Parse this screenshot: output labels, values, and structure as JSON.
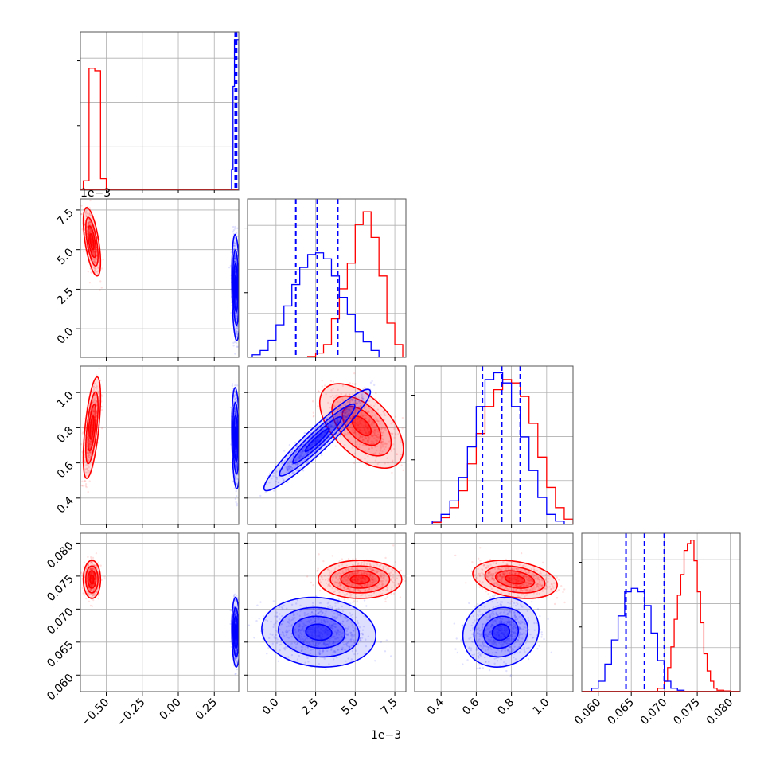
{
  "chart_data": {
    "type": "corner",
    "grid": true,
    "series": [
      {
        "color": "#ff0000"
      },
      {
        "color": "#0000ff",
        "quantile_lines": true
      }
    ],
    "params": [
      {
        "range": [
          -0.68,
          0.42
        ],
        "ticks": [
          -0.5,
          -0.25,
          0.0,
          0.25
        ],
        "tick_labels": [
          "−0.50",
          "−0.25",
          "0.00",
          "0.25"
        ],
        "hist": {
          "red": {
            "bins": [
              -0.66,
              -0.64,
              -0.62,
              -0.6,
              -0.58,
              -0.56,
              -0.54,
              -0.52,
              -0.5,
              -0.48,
              -0.46
            ],
            "counts": [
              0.18,
              0.18,
              2.35,
              2.35,
              2.3,
              2.3,
              0.22,
              0.22,
              0.0,
              0.0
            ]
          },
          "blue": {
            "bins": [
              0.37,
              0.38,
              0.39,
              0.4,
              0.41,
              0.42
            ],
            "counts": [
              0.4,
              2.0,
              2.9,
              2.9,
              2.9
            ]
          },
          "ylim": [
            0,
            3.05
          ],
          "blue_quantiles": [
            0.395,
            0.4,
            0.405
          ]
        }
      },
      {
        "range": [
          -0.0018,
          0.0082
        ],
        "ticks": [
          0.0,
          0.0025,
          0.005,
          0.0075
        ],
        "tick_labels": [
          "0.0",
          "2.5",
          "5.0",
          "7.5"
        ],
        "offset": "1e−3",
        "hist": {
          "red": {
            "bins": [
              0.002,
              0.0025,
              0.003,
              0.0035,
              0.004,
              0.0045,
              0.005,
              0.0055,
              0.006,
              0.0065,
              0.007,
              0.0075,
              0.008
            ],
            "counts": [
              0.1,
              0.5,
              1.5,
              4.5,
              8.0,
              11.0,
              15.5,
              17.0,
              14.0,
              9.5,
              4.0,
              1.5
            ]
          },
          "blue": {
            "bins": [
              -0.0015,
              -0.001,
              -0.0005,
              0.0,
              0.0005,
              0.001,
              0.0015,
              0.002,
              0.0025,
              0.003,
              0.0035,
              0.004,
              0.0045,
              0.005,
              0.0055,
              0.006,
              0.0065
            ],
            "counts": [
              0.3,
              0.8,
              2.0,
              3.8,
              6.0,
              8.5,
              10.5,
              12.0,
              12.2,
              11.5,
              9.5,
              7.0,
              5.0,
              3.0,
              1.8,
              0.8
            ]
          },
          "ylim": [
            0,
            18.5
          ],
          "blue_quantiles": [
            0.00125,
            0.0026,
            0.0039
          ]
        }
      },
      {
        "range": [
          0.25,
          1.15
        ],
        "ticks": [
          0.4,
          0.6,
          0.8,
          1.0
        ],
        "tick_labels": [
          "0.4",
          "0.6",
          "0.8",
          "1.0"
        ],
        "hist": {
          "red": {
            "bins": [
              0.35,
              0.4,
              0.45,
              0.5,
              0.55,
              0.6,
              0.65,
              0.7,
              0.75,
              0.8,
              0.85,
              0.9,
              0.95,
              1.0,
              1.05,
              1.1,
              1.15
            ],
            "counts": [
              0.3,
              1.0,
              2.5,
              5.0,
              9.0,
              13.5,
              17.5,
              20.0,
              21.5,
              21.0,
              19.0,
              15.0,
              10.0,
              5.5,
              2.5,
              0.8
            ]
          },
          "blue": {
            "bins": [
              0.35,
              0.4,
              0.45,
              0.5,
              0.55,
              0.6,
              0.65,
              0.7,
              0.75,
              0.8,
              0.85,
              0.9,
              0.95,
              1.0,
              1.05,
              1.1
            ],
            "counts": [
              0.5,
              1.5,
              3.5,
              7.0,
              11.5,
              17.5,
              21.5,
              22.5,
              21.0,
              17.5,
              13.0,
              8.0,
              4.0,
              1.5,
              0.5
            ]
          },
          "ylim": [
            0,
            23.5
          ],
          "blue_quantiles": [
            0.635,
            0.745,
            0.85
          ]
        }
      },
      {
        "range": [
          0.0575,
          0.0815
        ],
        "ticks": [
          0.06,
          0.065,
          0.07,
          0.075,
          0.08
        ],
        "tick_labels": [
          "0.060",
          "0.065",
          "0.070",
          "0.075",
          "0.080"
        ],
        "hist": {
          "red": {
            "bins": [
              0.069,
              0.07,
              0.0705,
              0.071,
              0.0715,
              0.072,
              0.0725,
              0.073,
              0.0735,
              0.074,
              0.0745,
              0.075,
              0.0755,
              0.076,
              0.0765,
              0.077,
              0.0775,
              0.078,
              0.079,
              0.08
            ],
            "counts": [
              0.5,
              1.5,
              3.5,
              6.5,
              10.5,
              14.0,
              17.0,
              20.5,
              21.5,
              22.0,
              19.0,
              14.5,
              10.0,
              5.5,
              3.0,
              1.5,
              0.5,
              0.2,
              0.1
            ]
          },
          "blue": {
            "bins": [
              0.059,
              0.06,
              0.061,
              0.062,
              0.063,
              0.064,
              0.065,
              0.066,
              0.067,
              0.068,
              0.069,
              0.07,
              0.071,
              0.072,
              0.073
            ],
            "counts": [
              0.5,
              1.5,
              4.0,
              7.5,
              11.0,
              14.5,
              15.0,
              14.5,
              12.5,
              8.5,
              4.5,
              1.5,
              0.5,
              0.2
            ]
          },
          "ylim": [
            0,
            23.0
          ],
          "blue_quantiles": [
            0.0642,
            0.067,
            0.07
          ]
        }
      }
    ],
    "pairs": [
      {
        "row": 1,
        "col": 0,
        "red": {
          "center": [
            -0.6,
            0.0055
          ],
          "sd": [
            0.025,
            0.0009
          ],
          "rho": -0.6
        },
        "blue": {
          "center": [
            0.4,
            0.0026
          ],
          "sd": [
            0.012,
            0.0014
          ],
          "rho": -0.2
        }
      },
      {
        "row": 2,
        "col": 0,
        "red": {
          "center": [
            -0.6,
            0.8
          ],
          "sd": [
            0.025,
            0.12
          ],
          "rho": 0.6
        },
        "blue": {
          "center": [
            0.4,
            0.74
          ],
          "sd": [
            0.012,
            0.12
          ],
          "rho": -0.2
        }
      },
      {
        "row": 2,
        "col": 1,
        "red": {
          "center": [
            0.0054,
            0.81
          ],
          "sd": [
            0.0011,
            0.1
          ],
          "rho": -0.55
        },
        "blue": {
          "center": [
            0.0026,
            0.73
          ],
          "sd": [
            0.0014,
            0.12
          ],
          "rho": 0.95
        }
      },
      {
        "row": 3,
        "col": 0,
        "red": {
          "center": [
            -0.6,
            0.0745
          ],
          "sd": [
            0.025,
            0.0012
          ],
          "rho": 0.0
        },
        "blue": {
          "center": [
            0.4,
            0.0665
          ],
          "sd": [
            0.012,
            0.0022
          ],
          "rho": -0.1
        }
      },
      {
        "row": 3,
        "col": 1,
        "red": {
          "center": [
            0.0053,
            0.0745
          ],
          "sd": [
            0.0011,
            0.0012
          ],
          "rho": 0.0
        },
        "blue": {
          "center": [
            0.0027,
            0.0665
          ],
          "sd": [
            0.0015,
            0.0022
          ],
          "rho": -0.1
        }
      },
      {
        "row": 3,
        "col": 2,
        "red": {
          "center": [
            0.82,
            0.0745
          ],
          "sd": [
            0.1,
            0.0012
          ],
          "rho": -0.3
        },
        "blue": {
          "center": [
            0.74,
            0.0665
          ],
          "sd": [
            0.09,
            0.0022
          ],
          "rho": 0.1
        }
      }
    ]
  }
}
